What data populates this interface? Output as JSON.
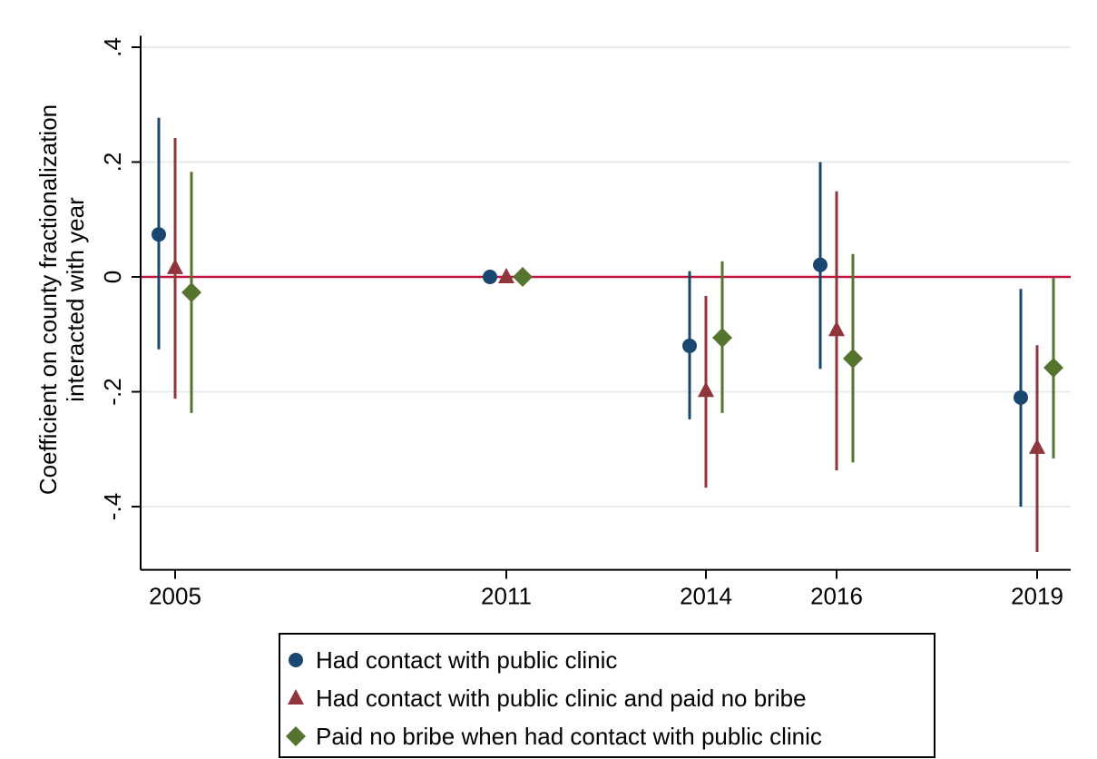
{
  "chart_data": {
    "type": "coefplot",
    "y_label": [
      "Coefficient on county fractionalization",
      "interacted with year"
    ],
    "categories": [
      "2005",
      "2011",
      "2014",
      "2016",
      "2019"
    ],
    "series": [
      {
        "name": "Had contact with public clinic",
        "color": "#1a476f",
        "marker": "circle",
        "values": [
          0.074,
          0,
          -0.12,
          0.021,
          -0.21
        ],
        "lower": [
          -0.126,
          null,
          -0.248,
          -0.16,
          -0.4
        ],
        "upper": [
          0.277,
          null,
          0.01,
          0.2,
          -0.021
        ]
      },
      {
        "name": "Had contact with public clinic and paid no bribe",
        "color": "#90353b",
        "marker": "triangle",
        "values": [
          0.016,
          0,
          -0.198,
          -0.092,
          -0.297
        ],
        "lower": [
          -0.212,
          null,
          -0.367,
          -0.337,
          -0.479
        ],
        "upper": [
          0.242,
          null,
          -0.033,
          0.149,
          -0.119
        ]
      },
      {
        "name": "Paid no bribe when had contact with public clinic",
        "color": "#55752f",
        "marker": "diamond",
        "values": [
          -0.027,
          0,
          -0.106,
          -0.142,
          -0.158
        ],
        "lower": [
          -0.237,
          null,
          -0.237,
          -0.323,
          -0.316
        ],
        "upper": [
          0.183,
          null,
          0.027,
          0.04,
          -0.002
        ]
      }
    ],
    "ylim": [
      -0.51,
      0.42
    ],
    "yticks": [
      {
        "value": -0.4,
        "label": "-.4"
      },
      {
        "value": -0.2,
        "label": "-.2"
      },
      0,
      {
        "value": 0.2,
        "label": ".2"
      },
      {
        "value": 0.4,
        "label": ".4"
      }
    ],
    "grid": true,
    "reference_line": {
      "value": 0,
      "color": "#c0143c"
    },
    "legend": "bottom"
  }
}
